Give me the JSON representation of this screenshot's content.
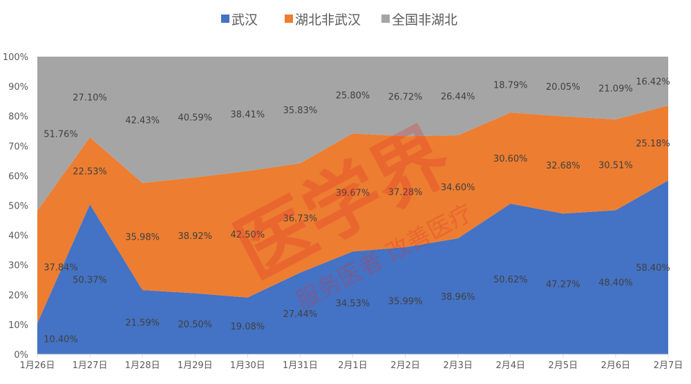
{
  "chart_data": {
    "type": "area",
    "stacked": "percent",
    "categories": [
      "1月26日",
      "1月27日",
      "1月28日",
      "1月29日",
      "1月30日",
      "1月31日",
      "2月1日",
      "2月2日",
      "2月3日",
      "2月4日",
      "2月5日",
      "2月6日",
      "2月7日"
    ],
    "series": [
      {
        "name": "武汉",
        "color": "#4472C4",
        "values": [
          10.4,
          50.37,
          21.59,
          20.5,
          19.08,
          27.44,
          34.53,
          35.99,
          38.96,
          50.62,
          47.27,
          48.4,
          58.4
        ]
      },
      {
        "name": "湖北非武汉",
        "color": "#ED7D31",
        "values": [
          37.84,
          22.53,
          35.98,
          38.92,
          42.5,
          36.73,
          39.67,
          37.28,
          34.6,
          30.6,
          32.68,
          30.51,
          25.18
        ]
      },
      {
        "name": "全国非湖北",
        "color": "#A5A5A5",
        "values": [
          51.76,
          27.1,
          42.43,
          40.59,
          38.41,
          35.83,
          25.8,
          26.72,
          26.44,
          18.79,
          20.05,
          21.09,
          16.42
        ]
      }
    ],
    "ylim": [
      0,
      100
    ],
    "yticks": [
      "0%",
      "10%",
      "20%",
      "30%",
      "40%",
      "50%",
      "60%",
      "70%",
      "80%",
      "90%",
      "100%"
    ],
    "legend": "top",
    "data_labels": true,
    "grid": false
  },
  "watermark": {
    "main": "医学界",
    "sub": "服务医者 改善医疗"
  }
}
